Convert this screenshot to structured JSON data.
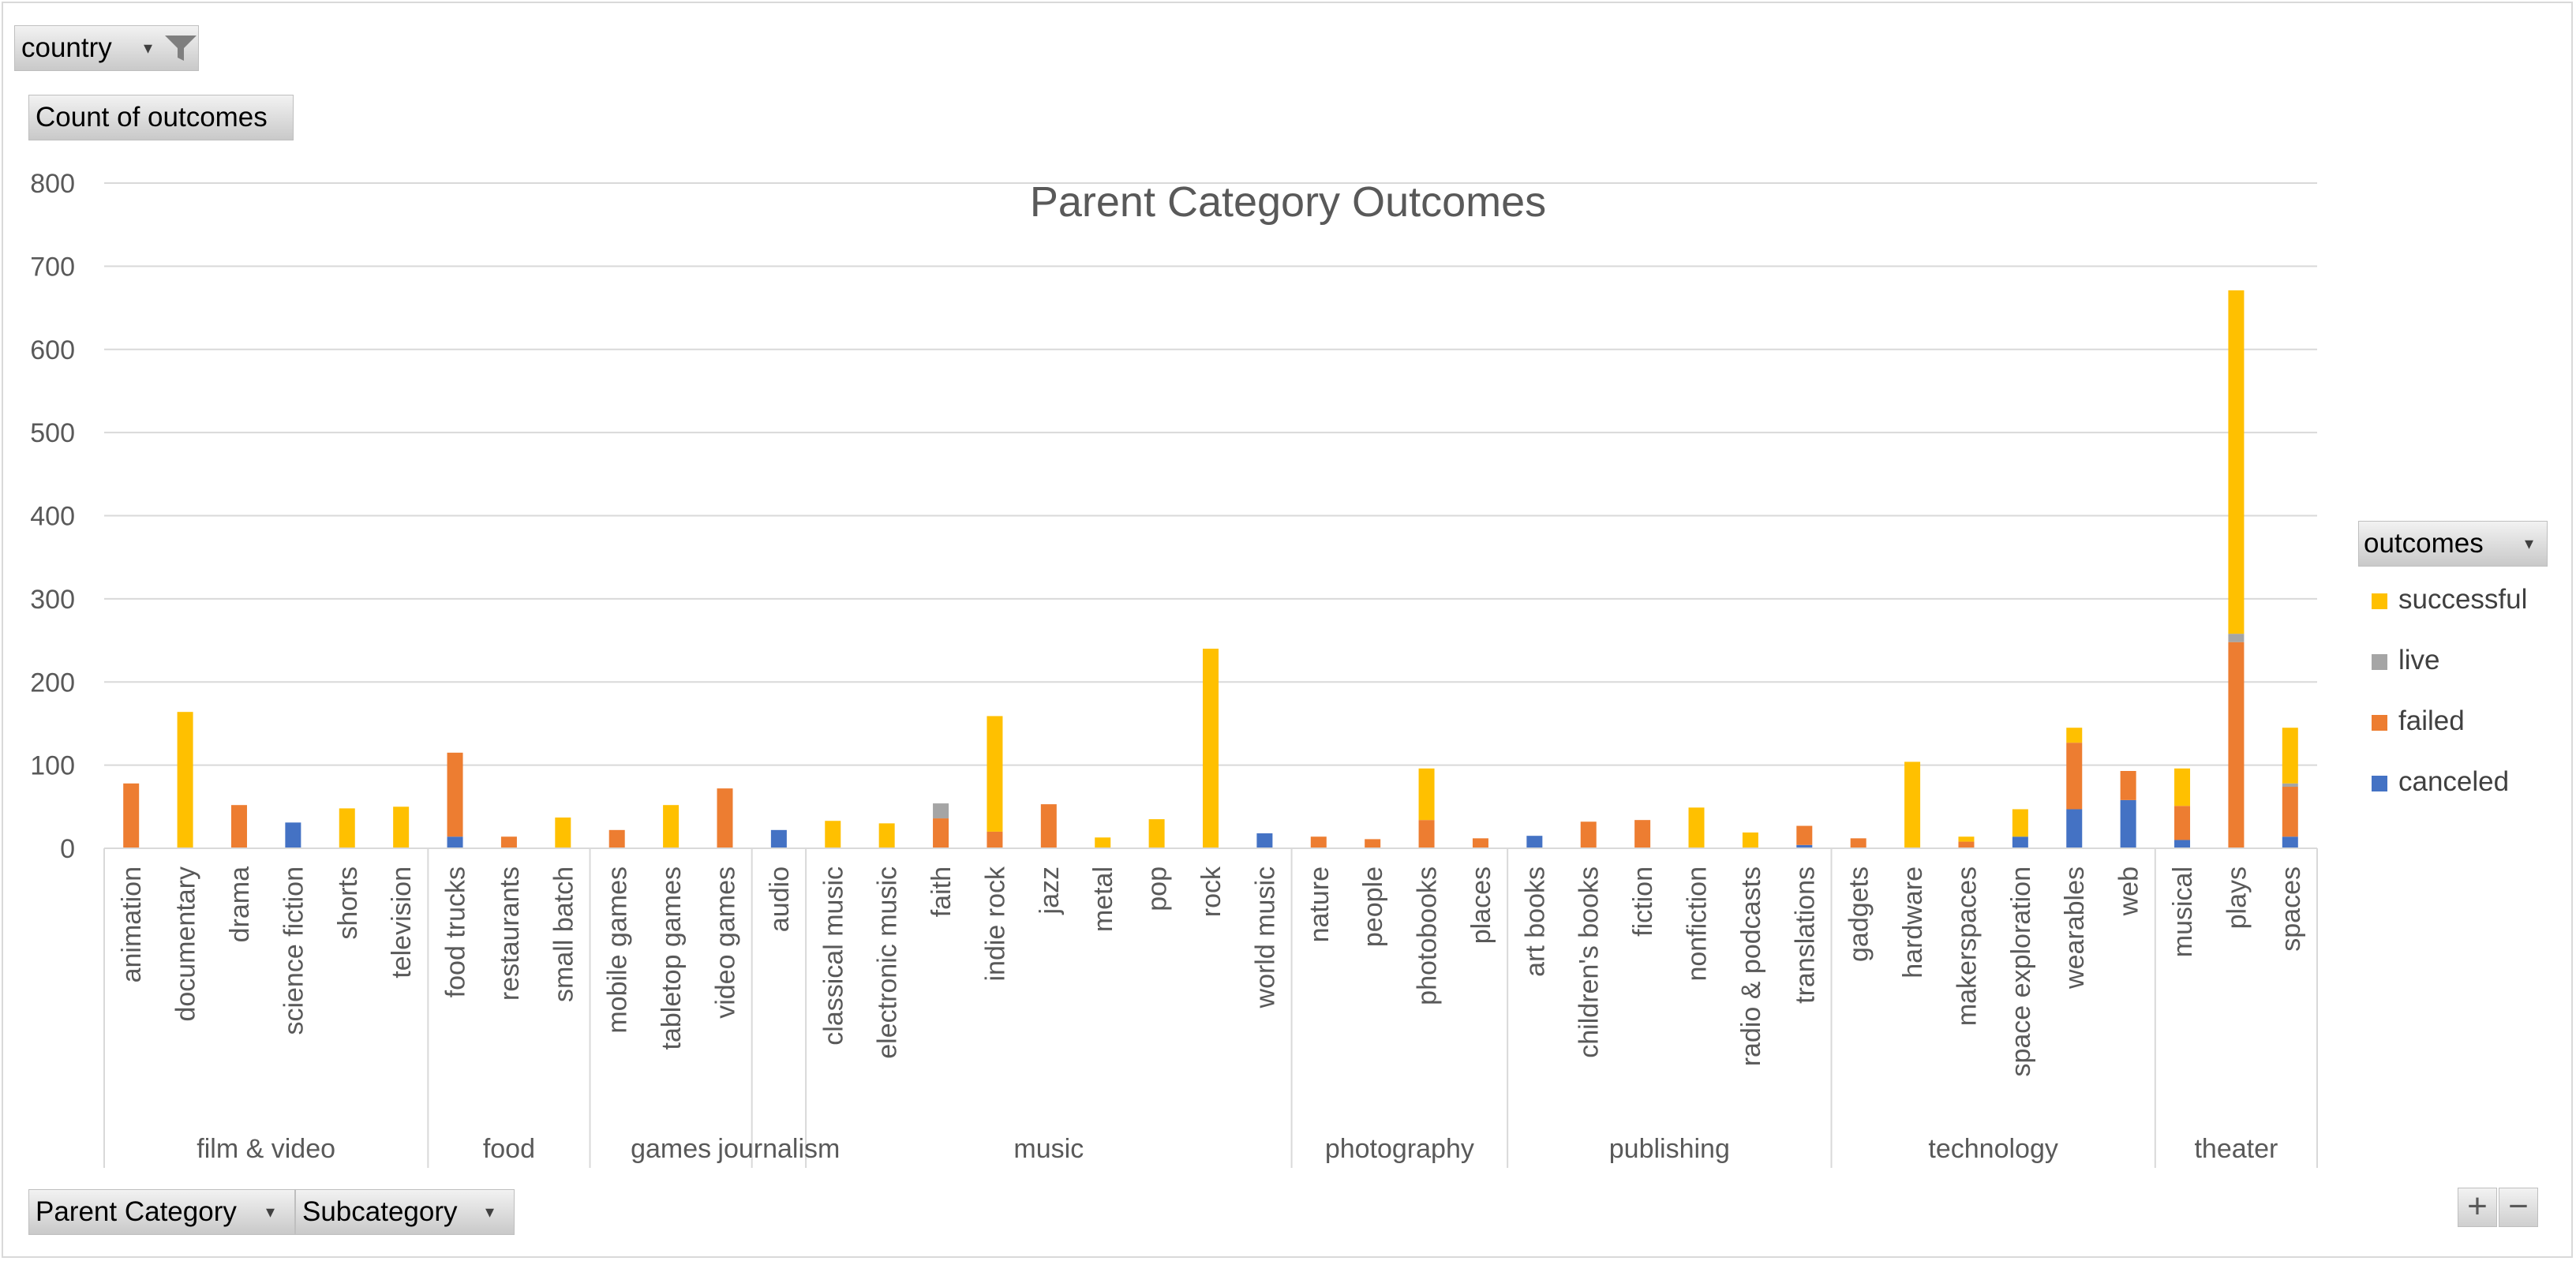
{
  "filter_country": {
    "label": "country"
  },
  "value_field": {
    "label": "Count of outcomes"
  },
  "row_fields": [
    {
      "label": "Parent Category"
    },
    {
      "label": "Subcategory"
    }
  ],
  "legend_field": {
    "label": "outcomes"
  },
  "zoom": {
    "plus": "+",
    "minus": "−"
  },
  "chart_data": {
    "type": "bar",
    "stacked": true,
    "title": "Parent Category Outcomes",
    "xlabel": "",
    "ylabel": "",
    "ylim": [
      0,
      800
    ],
    "yticks": [
      "0",
      "100",
      "200",
      "300",
      "400",
      "500",
      "600",
      "700",
      "800"
    ],
    "grid": true,
    "legend_position": "right",
    "groups": [
      {
        "name": "film & video",
        "count": 6
      },
      {
        "name": "food",
        "count": 3
      },
      {
        "name": "games",
        "count": 3
      },
      {
        "name": "journalism",
        "count": 1
      },
      {
        "name": "music",
        "count": 9
      },
      {
        "name": "photography",
        "count": 4
      },
      {
        "name": "publishing",
        "count": 6
      },
      {
        "name": "technology",
        "count": 6
      },
      {
        "name": "theater",
        "count": 3
      }
    ],
    "categories": [
      "animation",
      "documentary",
      "drama",
      "science fiction",
      "shorts",
      "television",
      "food trucks",
      "restaurants",
      "small batch",
      "mobile games",
      "tabletop games",
      "video games",
      "audio",
      "classical music",
      "electronic music",
      "faith",
      "indie rock",
      "jazz",
      "metal",
      "pop",
      "rock",
      "world music",
      "nature",
      "people",
      "photobooks",
      "places",
      "art books",
      "children's books",
      "fiction",
      "nonfiction",
      "radio & podcasts",
      "translations",
      "gadgets",
      "hardware",
      "makerspaces",
      "space exploration",
      "wearables",
      "web",
      "musical",
      "plays",
      "spaces"
    ],
    "series": [
      {
        "name": "canceled",
        "color": "#4472c4",
        "values": [
          0,
          0,
          0,
          31,
          0,
          0,
          14,
          0,
          0,
          0,
          0,
          0,
          22,
          0,
          0,
          0,
          0,
          0,
          0,
          0,
          0,
          18,
          0,
          0,
          0,
          0,
          15,
          0,
          0,
          0,
          0,
          4,
          0,
          0,
          0,
          14,
          47,
          58,
          10,
          0,
          14
        ]
      },
      {
        "name": "failed",
        "color": "#ed7d31",
        "values": [
          78,
          0,
          52,
          0,
          0,
          0,
          101,
          14,
          0,
          22,
          0,
          72,
          0,
          0,
          0,
          36,
          20,
          53,
          0,
          0,
          0,
          0,
          14,
          11,
          34,
          12,
          0,
          32,
          34,
          0,
          0,
          23,
          12,
          0,
          8,
          0,
          80,
          35,
          41,
          248,
          60
        ]
      },
      {
        "name": "live",
        "color": "#a5a5a5",
        "values": [
          0,
          0,
          0,
          0,
          0,
          0,
          0,
          0,
          0,
          0,
          0,
          0,
          0,
          0,
          0,
          18,
          0,
          0,
          0,
          0,
          0,
          0,
          0,
          0,
          0,
          0,
          0,
          0,
          0,
          0,
          0,
          0,
          0,
          0,
          0,
          0,
          0,
          0,
          0,
          10,
          4
        ]
      },
      {
        "name": "successful",
        "color": "#ffc000",
        "values": [
          0,
          164,
          0,
          0,
          48,
          50,
          0,
          0,
          37,
          0,
          52,
          0,
          0,
          33,
          30,
          0,
          139,
          0,
          13,
          35,
          240,
          0,
          0,
          0,
          62,
          0,
          0,
          0,
          0,
          49,
          19,
          0,
          0,
          104,
          6,
          33,
          18,
          0,
          45,
          413,
          67
        ]
      }
    ]
  }
}
